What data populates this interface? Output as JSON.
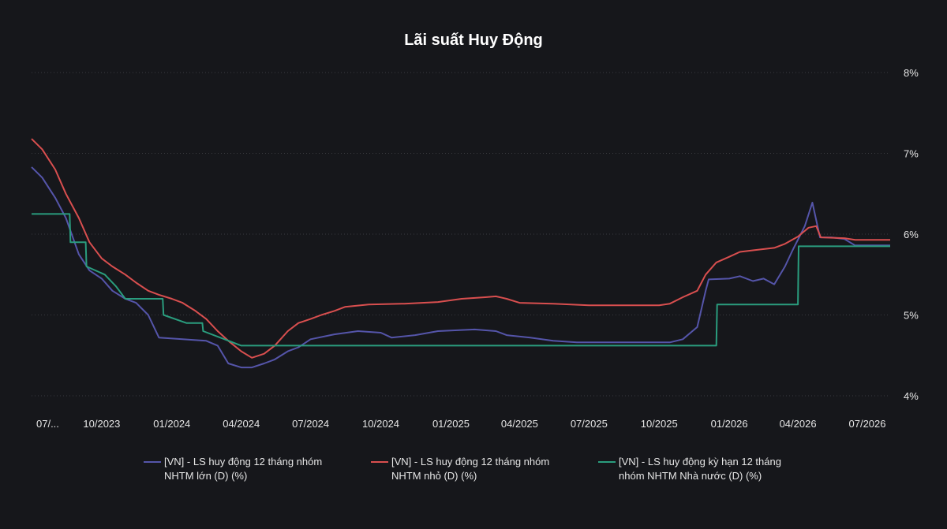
{
  "chart_data": {
    "type": "line",
    "title": "Lãi suất Huy Động",
    "xlabel": "",
    "ylabel": "",
    "ylim": [
      4,
      8
    ],
    "y_ticks": [
      "4%",
      "5%",
      "6%",
      "7%",
      "8%"
    ],
    "x_ticks": [
      "07/...",
      "10/2023",
      "01/2024",
      "04/2024",
      "07/2024",
      "10/2024",
      "01/2025",
      "04/2025",
      "07/2025",
      "10/2025",
      "01/2026",
      "04/2026",
      "07/2026"
    ],
    "grid": "horizontal dotted",
    "legend_position": "bottom",
    "series": [
      {
        "name": "[VN] - LS huy động 12 tháng nhóm NHTM lớn (D) (%)",
        "color": "#5555aa",
        "points": [
          [
            "2023-07-01",
            6.83
          ],
          [
            "2023-07-15",
            6.7
          ],
          [
            "2023-08-01",
            6.45
          ],
          [
            "2023-08-15",
            6.2
          ],
          [
            "2023-09-01",
            5.75
          ],
          [
            "2023-09-15",
            5.55
          ],
          [
            "2023-10-01",
            5.45
          ],
          [
            "2023-10-15",
            5.3
          ],
          [
            "2023-11-01",
            5.2
          ],
          [
            "2023-11-15",
            5.15
          ],
          [
            "2023-12-01",
            5.0
          ],
          [
            "2023-12-15",
            4.72
          ],
          [
            "2024-01-15",
            4.7
          ],
          [
            "2024-02-15",
            4.68
          ],
          [
            "2024-03-01",
            4.62
          ],
          [
            "2024-03-15",
            4.4
          ],
          [
            "2024-04-01",
            4.35
          ],
          [
            "2024-04-15",
            4.35
          ],
          [
            "2024-05-01",
            4.4
          ],
          [
            "2024-05-15",
            4.45
          ],
          [
            "2024-06-01",
            4.55
          ],
          [
            "2024-06-15",
            4.6
          ],
          [
            "2024-07-01",
            4.7
          ],
          [
            "2024-08-01",
            4.76
          ],
          [
            "2024-09-01",
            4.8
          ],
          [
            "2024-10-01",
            4.78
          ],
          [
            "2024-10-15",
            4.72
          ],
          [
            "2024-11-15",
            4.75
          ],
          [
            "2024-12-15",
            4.8
          ],
          [
            "2025-02-01",
            4.82
          ],
          [
            "2025-03-01",
            4.8
          ],
          [
            "2025-03-15",
            4.75
          ],
          [
            "2025-04-15",
            4.72
          ],
          [
            "2025-05-15",
            4.68
          ],
          [
            "2025-06-15",
            4.66
          ],
          [
            "2025-09-01",
            4.66
          ],
          [
            "2025-10-15",
            4.66
          ],
          [
            "2025-11-01",
            4.7
          ],
          [
            "2025-11-20",
            4.85
          ],
          [
            "2025-12-01",
            5.3
          ],
          [
            "2025-12-05",
            5.44
          ],
          [
            "2026-01-01",
            5.45
          ],
          [
            "2026-01-15",
            5.48
          ],
          [
            "2026-02-01",
            5.42
          ],
          [
            "2026-02-15",
            5.45
          ],
          [
            "2026-03-01",
            5.38
          ],
          [
            "2026-03-15",
            5.6
          ],
          [
            "2026-03-25",
            5.8
          ],
          [
            "2026-04-10",
            6.1
          ],
          [
            "2026-04-20",
            6.39
          ],
          [
            "2026-04-30",
            5.96
          ],
          [
            "2026-05-15",
            5.96
          ],
          [
            "2026-06-01",
            5.94
          ],
          [
            "2026-06-15",
            5.86
          ],
          [
            "2026-07-31",
            5.86
          ]
        ]
      },
      {
        "name": "[VN] - LS huy động 12 tháng nhóm NHTM nhỏ (D) (%)",
        "color": "#d94f4f",
        "points": [
          [
            "2023-07-01",
            7.18
          ],
          [
            "2023-07-15",
            7.05
          ],
          [
            "2023-08-01",
            6.8
          ],
          [
            "2023-08-15",
            6.5
          ],
          [
            "2023-09-01",
            6.2
          ],
          [
            "2023-09-15",
            5.9
          ],
          [
            "2023-10-01",
            5.7
          ],
          [
            "2023-10-15",
            5.6
          ],
          [
            "2023-11-01",
            5.5
          ],
          [
            "2023-11-15",
            5.4
          ],
          [
            "2023-12-01",
            5.3
          ],
          [
            "2023-12-15",
            5.25
          ],
          [
            "2024-01-01",
            5.2
          ],
          [
            "2024-01-15",
            5.15
          ],
          [
            "2024-02-01",
            5.05
          ],
          [
            "2024-02-15",
            4.95
          ],
          [
            "2024-03-01",
            4.8
          ],
          [
            "2024-03-15",
            4.68
          ],
          [
            "2024-04-01",
            4.55
          ],
          [
            "2024-04-15",
            4.47
          ],
          [
            "2024-05-01",
            4.52
          ],
          [
            "2024-05-15",
            4.62
          ],
          [
            "2024-06-01",
            4.8
          ],
          [
            "2024-06-15",
            4.9
          ],
          [
            "2024-07-01",
            4.95
          ],
          [
            "2024-07-15",
            5.0
          ],
          [
            "2024-08-01",
            5.05
          ],
          [
            "2024-08-15",
            5.1
          ],
          [
            "2024-09-15",
            5.13
          ],
          [
            "2024-11-01",
            5.14
          ],
          [
            "2024-12-15",
            5.16
          ],
          [
            "2025-01-15",
            5.2
          ],
          [
            "2025-02-15",
            5.22
          ],
          [
            "2025-03-01",
            5.23
          ],
          [
            "2025-03-15",
            5.2
          ],
          [
            "2025-04-01",
            5.15
          ],
          [
            "2025-05-15",
            5.14
          ],
          [
            "2025-07-01",
            5.12
          ],
          [
            "2025-08-15",
            5.12
          ],
          [
            "2025-10-01",
            5.12
          ],
          [
            "2025-10-15",
            5.14
          ],
          [
            "2025-11-01",
            5.22
          ],
          [
            "2025-11-20",
            5.3
          ],
          [
            "2025-12-01",
            5.5
          ],
          [
            "2025-12-15",
            5.65
          ],
          [
            "2026-01-01",
            5.72
          ],
          [
            "2026-01-15",
            5.78
          ],
          [
            "2026-02-01",
            5.8
          ],
          [
            "2026-03-01",
            5.83
          ],
          [
            "2026-03-15",
            5.88
          ],
          [
            "2026-04-01",
            5.97
          ],
          [
            "2026-04-15",
            6.08
          ],
          [
            "2026-04-25",
            6.1
          ],
          [
            "2026-05-01",
            5.96
          ],
          [
            "2026-06-01",
            5.95
          ],
          [
            "2026-06-15",
            5.93
          ],
          [
            "2026-07-31",
            5.93
          ]
        ]
      },
      {
        "name": "[VN] - LS huy động kỳ hạn 12 tháng nhóm NHTM Nhà nước (D) (%)",
        "color": "#2a9d7e",
        "points": [
          [
            "2023-07-01",
            6.25
          ],
          [
            "2023-08-20",
            6.25
          ],
          [
            "2023-08-21",
            5.9
          ],
          [
            "2023-09-10",
            5.9
          ],
          [
            "2023-09-11",
            5.6
          ],
          [
            "2023-10-05",
            5.5
          ],
          [
            "2023-10-20",
            5.35
          ],
          [
            "2023-11-01",
            5.2
          ],
          [
            "2023-12-20",
            5.2
          ],
          [
            "2023-12-21",
            5.0
          ],
          [
            "2024-01-20",
            4.9
          ],
          [
            "2024-02-10",
            4.9
          ],
          [
            "2024-02-11",
            4.8
          ],
          [
            "2024-03-10",
            4.7
          ],
          [
            "2024-04-01",
            4.62
          ],
          [
            "2025-12-15",
            4.62
          ],
          [
            "2025-12-16",
            5.13
          ],
          [
            "2026-04-01",
            5.13
          ],
          [
            "2026-04-02",
            5.85
          ],
          [
            "2026-07-31",
            5.85
          ]
        ]
      }
    ]
  }
}
